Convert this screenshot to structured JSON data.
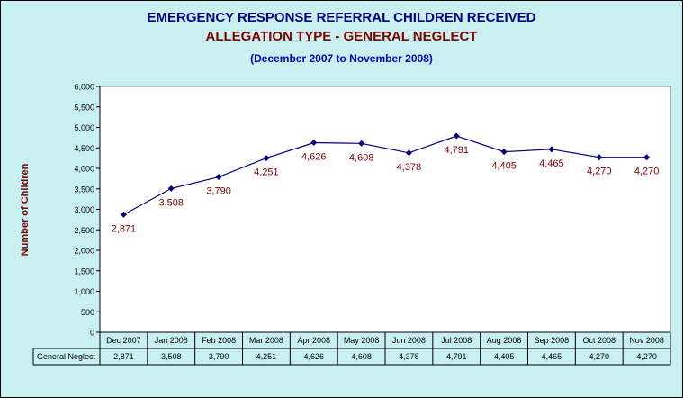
{
  "title": "EMERGENCY RESPONSE REFERRAL CHILDREN RECEIVED",
  "subtitle": "ALLEGATION TYPE - GENERAL NEGLECT",
  "period": "(December 2007 to November 2008)",
  "colors": {
    "background": "#c8f0f0",
    "plot_area": "#ffffff",
    "title": "#000080",
    "subtitle": "#800000",
    "period": "#0000cc",
    "series_line": "#000080",
    "data_label": "#800000",
    "ylabel": "#800000"
  },
  "chart_data": {
    "type": "line",
    "title": "EMERGENCY RESPONSE REFERRAL CHILDREN RECEIVED",
    "subtitle": "ALLEGATION TYPE - GENERAL NEGLECT",
    "xlabel": "",
    "ylabel": "Number of Children",
    "ylim": [
      0,
      6000
    ],
    "ytick_step": 500,
    "yticks": [
      "0",
      "500",
      "1,000",
      "1,500",
      "2,000",
      "2,500",
      "3,000",
      "3,500",
      "4,000",
      "4,500",
      "5,000",
      "5,500",
      "6,000"
    ],
    "grid": false,
    "legend": "data table below chart",
    "categories": [
      "Dec 2007",
      "Jan 2008",
      "Feb 2008",
      "Mar 2008",
      "Apr 2008",
      "May 2008",
      "Jun 2008",
      "Jul 2008",
      "Aug 2008",
      "Sep 2008",
      "Oct 2008",
      "Nov 2008"
    ],
    "series": [
      {
        "name": "General Neglect",
        "values": [
          2871,
          3508,
          3790,
          4251,
          4626,
          4608,
          4378,
          4791,
          4405,
          4465,
          4270,
          4270
        ],
        "labels": [
          "2,871",
          "3,508",
          "3,790",
          "4,251",
          "4,626",
          "4,608",
          "4,378",
          "4,791",
          "4,405",
          "4,465",
          "4,270",
          "4,270"
        ]
      }
    ]
  }
}
